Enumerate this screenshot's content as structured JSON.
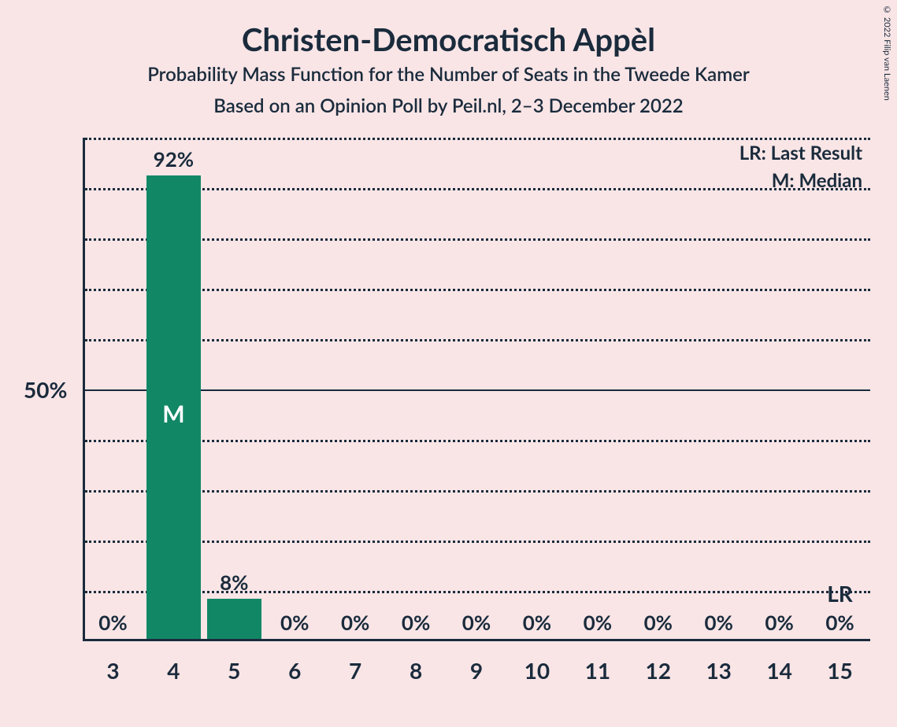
{
  "title": "Christen-Democratisch Appèl",
  "subtitle1": "Probability Mass Function for the Number of Seats in the Tweede Kamer",
  "subtitle2": "Based on an Opinion Poll by Peil.nl, 2–3 December 2022",
  "copyright": "© 2022 Filip van Laenen",
  "chart": {
    "type": "bar",
    "background_color": "#f9e5e6",
    "bar_color": "#128766",
    "axis_color": "#1a2b3c",
    "grid_color": "#1a2b3c",
    "text_color": "#1a2b3c",
    "marker_text_color": "#ffffff",
    "ylim": [
      0,
      100
    ],
    "ytick_major": 50,
    "ytick_minor": 10,
    "y_label_format": "%",
    "y_visible_labels": [
      50
    ],
    "bar_width_ratio": 0.9,
    "categories": [
      3,
      4,
      5,
      6,
      7,
      8,
      9,
      10,
      11,
      12,
      13,
      14,
      15
    ],
    "values": [
      0,
      92,
      8,
      0,
      0,
      0,
      0,
      0,
      0,
      0,
      0,
      0,
      0
    ],
    "value_labels": [
      "0%",
      "92%",
      "8%",
      "0%",
      "0%",
      "0%",
      "0%",
      "0%",
      "0%",
      "0%",
      "0%",
      "0%",
      "0%"
    ],
    "median_index": 1,
    "median_marker": "M",
    "last_result_index": 12,
    "last_result_marker": "LR",
    "legend": {
      "lr": "LR: Last Result",
      "m": "M: Median"
    },
    "title_fontsize": 40,
    "subtitle_fontsize": 24,
    "axis_label_fontsize": 28,
    "legend_fontsize": 24,
    "value_label_fontsize": 26
  }
}
